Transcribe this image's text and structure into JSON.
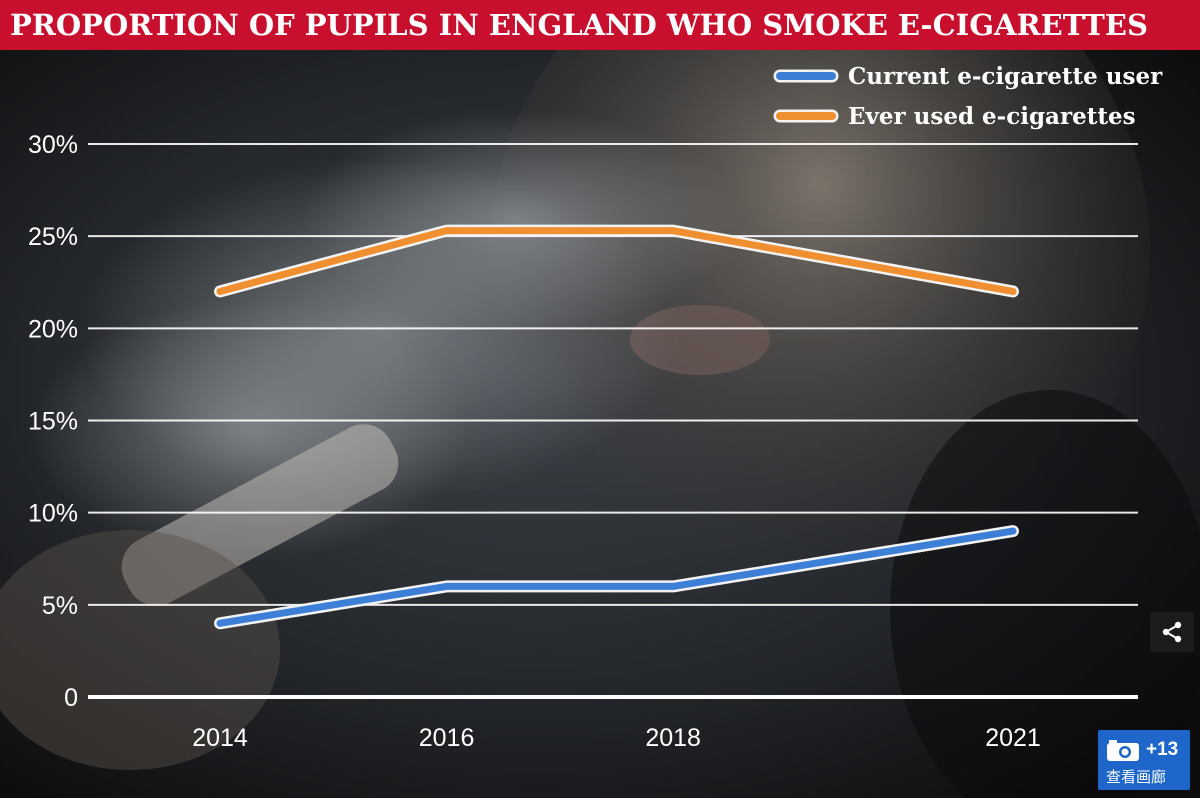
{
  "title": "PROPORTION OF PUPILS IN ENGLAND WHO SMOKE E-CIGARETTES",
  "colors": {
    "title_bar": "#c8102e",
    "current_user": "#3d7fd6",
    "ever_used": "#ef8f2f",
    "gridline": "#ffffff",
    "gallery_button": "#1e66c9"
  },
  "chart_data": {
    "type": "line",
    "title": "PROPORTION OF PUPILS IN ENGLAND WHO SMOKE E-CIGARETTES",
    "xlabel": "",
    "ylabel": "",
    "categories": [
      "2014",
      "2016",
      "2018",
      "2021"
    ],
    "x_positions": [
      2014,
      2016,
      2018,
      2021
    ],
    "ylim": [
      0,
      30
    ],
    "yticks": [
      0,
      5,
      10,
      15,
      20,
      25,
      30
    ],
    "ytick_labels": [
      "0",
      "5%",
      "10%",
      "15%",
      "20%",
      "25%",
      "30%"
    ],
    "grid": true,
    "legend_position": "top-right",
    "series": [
      {
        "name": "Current e-cigarette user",
        "color": "#3d7fd6",
        "values": [
          4,
          6,
          6,
          9
        ]
      },
      {
        "name": "Ever used e-cigarettes",
        "color": "#ef8f2f",
        "values": [
          22,
          25.3,
          25.3,
          22
        ]
      }
    ]
  },
  "overlay": {
    "share_icon": "share-icon",
    "gallery_icon": "camera-icon",
    "gallery_count": "+13",
    "gallery_label": "查看画廊"
  }
}
